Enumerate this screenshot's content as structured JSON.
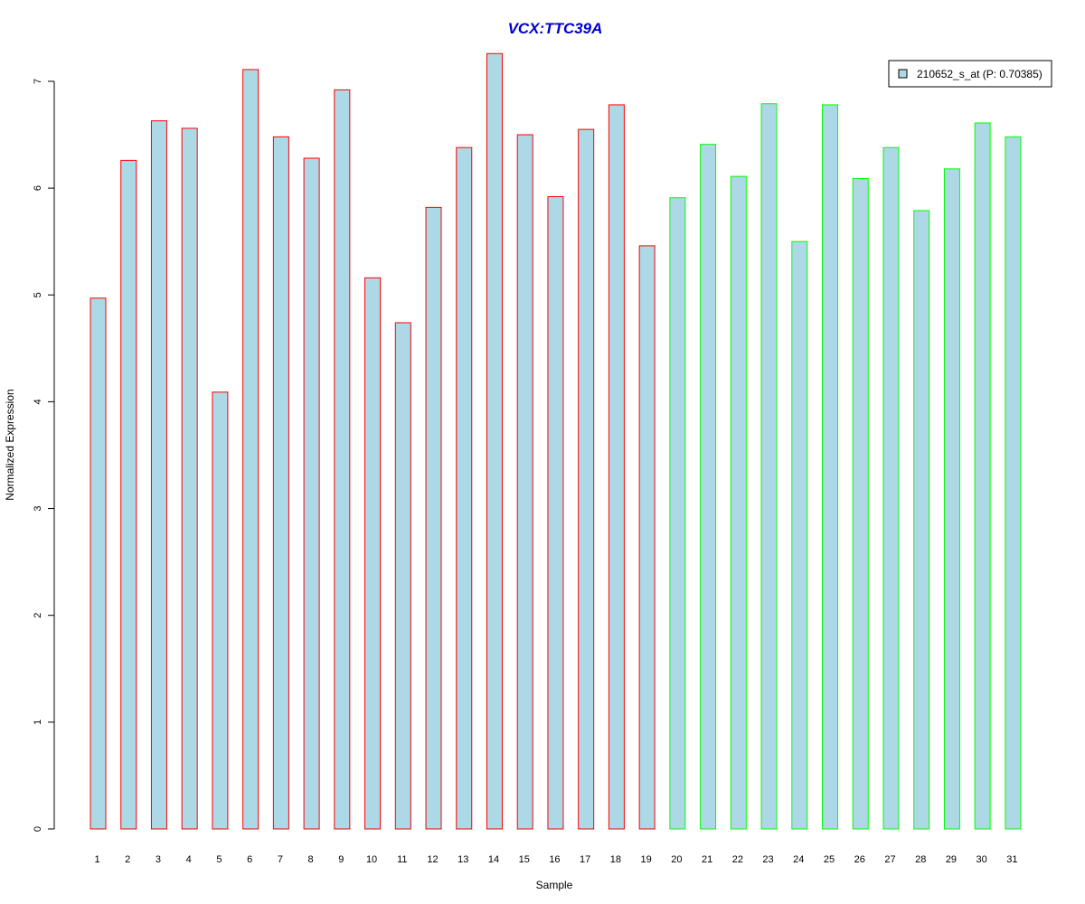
{
  "chart_data": {
    "type": "bar",
    "title": "VCX:TTC39A",
    "xlabel": "Sample",
    "ylabel": "Normalized Expression",
    "ylim": [
      0,
      7
    ],
    "yticks": [
      0,
      1,
      2,
      3,
      4,
      5,
      6,
      7
    ],
    "grid": false,
    "legend_position": "top-right",
    "categories": [
      "1",
      "2",
      "3",
      "4",
      "5",
      "6",
      "7",
      "8",
      "9",
      "10",
      "11",
      "12",
      "13",
      "14",
      "15",
      "16",
      "17",
      "18",
      "19",
      "20",
      "21",
      "22",
      "23",
      "24",
      "25",
      "26",
      "27",
      "28",
      "29",
      "30",
      "31"
    ],
    "series": [
      {
        "name": "210652_s_at (P: 0.70385)",
        "values": [
          4.97,
          6.26,
          6.63,
          6.56,
          4.09,
          7.11,
          6.48,
          6.28,
          6.92,
          5.16,
          4.74,
          5.82,
          6.38,
          7.26,
          6.5,
          5.92,
          6.55,
          6.78,
          5.46,
          5.91,
          6.41,
          6.11,
          6.79,
          5.5,
          6.78,
          6.09,
          6.38,
          5.79,
          6.18,
          6.61,
          6.48
        ],
        "fill_color": "#add8e6"
      }
    ],
    "groups": [
      {
        "samples": [
          "1",
          "2",
          "3",
          "4",
          "5",
          "6",
          "7",
          "8",
          "9",
          "10",
          "11",
          "12",
          "13",
          "14",
          "15",
          "16",
          "17",
          "18",
          "19"
        ],
        "border_color": "#ff0000"
      },
      {
        "samples": [
          "20",
          "21",
          "22",
          "23",
          "24",
          "25",
          "26",
          "27",
          "28",
          "29",
          "30",
          "31"
        ],
        "border_color": "#00ff00"
      }
    ],
    "colors": {
      "title": "#0000cd",
      "bar_fill": "#add8e6",
      "axis": "#000000"
    }
  }
}
